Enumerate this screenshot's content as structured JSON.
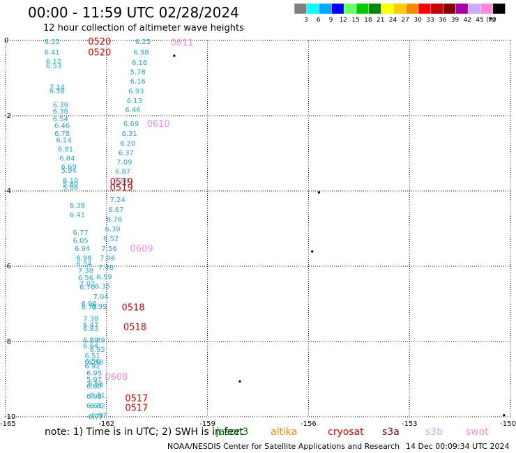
{
  "title": "00:00 - 11:59 UTC 02/28/2024",
  "subtitle": "12 hour collection of altimeter wave heights",
  "legend": {
    "unit": "(ft)",
    "items": [
      {
        "label": "3",
        "color": "#808080"
      },
      {
        "label": "6",
        "color": "#00ffff"
      },
      {
        "label": "9",
        "color": "#00aaff"
      },
      {
        "label": "12",
        "color": "#0000ff"
      },
      {
        "label": "15",
        "color": "#66ff66"
      },
      {
        "label": "18",
        "color": "#00cc00"
      },
      {
        "label": "21",
        "color": "#008800"
      },
      {
        "label": "24",
        "color": "#ffff00"
      },
      {
        "label": "27",
        "color": "#ffcc00"
      },
      {
        "label": "30",
        "color": "#ff8800"
      },
      {
        "label": "33",
        "color": "#ff0000"
      },
      {
        "label": "36",
        "color": "#cc0000"
      },
      {
        "label": "39",
        "color": "#880000"
      },
      {
        "label": "42",
        "color": "#aa00aa"
      },
      {
        "label": "45",
        "color": "#ccaaff"
      },
      {
        "label": "70",
        "color": "#ff88dd"
      },
      {
        "label": "",
        "color": "#000000"
      }
    ]
  },
  "axes": {
    "x_ticks": [
      "-165",
      "-162",
      "-159",
      "-156",
      "-153",
      "-150"
    ],
    "y_ticks": [
      "0",
      "-2",
      "-4",
      "-6",
      "-8",
      "-10"
    ],
    "x_range": [
      -165,
      -150
    ],
    "y_range": [
      -10,
      0
    ],
    "grid": true
  },
  "colors": {
    "swh": "#22a8d8",
    "s3a": "#e00000",
    "s3b": "#ff88dd"
  },
  "swh_readings": [
    {
      "text": "6.33",
      "lon": -163.85,
      "lat": -0.02
    },
    {
      "text": "6.41",
      "lon": -163.85,
      "lat": -0.31
    },
    {
      "text": "6.12",
      "lon": -163.8,
      "lat": -0.55
    },
    {
      "text": "6.53",
      "lon": -163.8,
      "lat": -0.66
    },
    {
      "text": "7.14",
      "lon": -163.7,
      "lat": -1.23
    },
    {
      "text": "6.58",
      "lon": -163.7,
      "lat": -1.32
    },
    {
      "text": "6.39",
      "lon": -163.6,
      "lat": -1.7
    },
    {
      "text": "6.38",
      "lon": -163.6,
      "lat": -1.87
    },
    {
      "text": "6.54",
      "lon": -163.6,
      "lat": -2.07
    },
    {
      "text": "6.46",
      "lon": -163.55,
      "lat": -2.25
    },
    {
      "text": "6.78",
      "lon": -163.55,
      "lat": -2.46
    },
    {
      "text": "6.14",
      "lon": -163.5,
      "lat": -2.64
    },
    {
      "text": "6.81",
      "lon": -163.45,
      "lat": -2.88
    },
    {
      "text": "6.84",
      "lon": -163.4,
      "lat": -3.12
    },
    {
      "text": "6.69",
      "lon": -163.35,
      "lat": -3.34
    },
    {
      "text": "5.94",
      "lon": -163.35,
      "lat": -3.44
    },
    {
      "text": "6.10",
      "lon": -163.3,
      "lat": -3.7
    },
    {
      "text": "5.80",
      "lon": -163.3,
      "lat": -3.81
    },
    {
      "text": "5.86",
      "lon": -163.3,
      "lat": -3.9
    },
    {
      "text": "6.38",
      "lon": -163.1,
      "lat": -4.37
    },
    {
      "text": "6.41",
      "lon": -163.1,
      "lat": -4.62
    },
    {
      "text": "6.77",
      "lon": -163.0,
      "lat": -5.09
    },
    {
      "text": "6.05",
      "lon": -163.0,
      "lat": -5.31
    },
    {
      "text": "6.94",
      "lon": -162.95,
      "lat": -5.52
    },
    {
      "text": "6.98",
      "lon": -162.9,
      "lat": -5.77
    },
    {
      "text": "6.54",
      "lon": -162.9,
      "lat": -5.92
    },
    {
      "text": "7.38",
      "lon": -162.85,
      "lat": -6.1
    },
    {
      "text": "6.56",
      "lon": -162.85,
      "lat": -6.3
    },
    {
      "text": "7.02",
      "lon": -162.8,
      "lat": -6.45
    },
    {
      "text": "6.70",
      "lon": -162.8,
      "lat": -6.55
    },
    {
      "text": "6.96",
      "lon": -162.75,
      "lat": -6.98
    },
    {
      "text": "6.73",
      "lon": -162.75,
      "lat": -7.07
    },
    {
      "text": "7.38",
      "lon": -162.7,
      "lat": -7.38
    },
    {
      "text": "6.47",
      "lon": -162.7,
      "lat": -7.55
    },
    {
      "text": "6.83",
      "lon": -162.7,
      "lat": -7.65
    },
    {
      "text": "6.59",
      "lon": -162.7,
      "lat": -7.95
    },
    {
      "text": "6.64",
      "lon": -162.7,
      "lat": -8.1
    },
    {
      "text": "6.51",
      "lon": -162.65,
      "lat": -8.37
    },
    {
      "text": "6.56",
      "lon": -162.65,
      "lat": -8.52
    },
    {
      "text": "6.92",
      "lon": -162.65,
      "lat": -8.64
    },
    {
      "text": "6.95",
      "lon": -162.6,
      "lat": -8.82
    },
    {
      "text": "6.56",
      "lon": -162.55,
      "lat": -9.12
    },
    {
      "text": "6.31",
      "lon": -162.5,
      "lat": -9.42
    },
    {
      "text": "6.82",
      "lon": -162.5,
      "lat": -9.69
    },
    {
      "text": "6.97",
      "lon": -162.45,
      "lat": -9.95
    },
    {
      "text": "6.25",
      "lon": -161.15,
      "lat": -0.02
    },
    {
      "text": "6.98",
      "lon": -161.2,
      "lat": -0.31
    },
    {
      "text": "6.16",
      "lon": -161.25,
      "lat": -0.57
    },
    {
      "text": "5.78",
      "lon": -161.3,
      "lat": -0.82
    },
    {
      "text": "6.16",
      "lon": -161.3,
      "lat": -1.07
    },
    {
      "text": "6.93",
      "lon": -161.35,
      "lat": -1.33
    },
    {
      "text": "6.13",
      "lon": -161.4,
      "lat": -1.59
    },
    {
      "text": "6.46",
      "lon": -161.45,
      "lat": -1.83
    },
    {
      "text": "6.69",
      "lon": -161.5,
      "lat": -2.2
    },
    {
      "text": "6.31",
      "lon": -161.55,
      "lat": -2.46
    },
    {
      "text": "6.20",
      "lon": -161.6,
      "lat": -2.72
    },
    {
      "text": "6.37",
      "lon": -161.65,
      "lat": -2.97
    },
    {
      "text": "7.09",
      "lon": -161.7,
      "lat": -3.22
    },
    {
      "text": "6.87",
      "lon": -161.75,
      "lat": -3.47
    },
    {
      "text": "6.58",
      "lon": -161.8,
      "lat": -3.72
    },
    {
      "text": "7.24",
      "lon": -161.9,
      "lat": -4.22
    },
    {
      "text": "6.67",
      "lon": -161.95,
      "lat": -4.48
    },
    {
      "text": "6.76",
      "lon": -162.0,
      "lat": -4.74
    },
    {
      "text": "6.39",
      "lon": -162.05,
      "lat": -5.0
    },
    {
      "text": "6.52",
      "lon": -162.1,
      "lat": -5.25
    },
    {
      "text": "7.56",
      "lon": -162.15,
      "lat": -5.52
    },
    {
      "text": "7.06",
      "lon": -162.2,
      "lat": -5.77
    },
    {
      "text": "7.48",
      "lon": -162.25,
      "lat": -6.02
    },
    {
      "text": "6.59",
      "lon": -162.3,
      "lat": -6.27
    },
    {
      "text": "6.35",
      "lon": -162.35,
      "lat": -6.52
    },
    {
      "text": "7.04",
      "lon": -162.4,
      "lat": -6.8
    },
    {
      "text": "6.99",
      "lon": -162.45,
      "lat": -7.06
    },
    {
      "text": "6.39",
      "lon": -162.5,
      "lat": -7.95
    },
    {
      "text": "6.92",
      "lon": -162.5,
      "lat": -8.2
    },
    {
      "text": "6.58",
      "lon": -162.55,
      "lat": -8.54
    },
    {
      "text": "5.97",
      "lon": -162.6,
      "lat": -9.0
    },
    {
      "text": "6.80",
      "lon": -162.6,
      "lat": -9.18
    },
    {
      "text": "6.98",
      "lon": -162.6,
      "lat": -9.44
    },
    {
      "text": "6.63",
      "lon": -162.6,
      "lat": -9.69
    },
    {
      "text": "6.77",
      "lon": -162.55,
      "lat": -9.98
    }
  ],
  "track_labels": [
    {
      "text": "0520",
      "lon": -162.55,
      "lat": -0.02,
      "sat": "s3a"
    },
    {
      "text": "0520",
      "lon": -162.55,
      "lat": -0.31,
      "sat": "s3a"
    },
    {
      "text": "0611",
      "lon": -160.1,
      "lat": -0.05,
      "sat": "s3b"
    },
    {
      "text": "0610",
      "lon": -160.8,
      "lat": -2.2,
      "sat": "s3b"
    },
    {
      "text": "0519",
      "lon": -161.9,
      "lat": -3.75,
      "sat": "s3a"
    },
    {
      "text": "0519",
      "lon": -161.9,
      "lat": -3.9,
      "sat": "s3a"
    },
    {
      "text": "0609",
      "lon": -161.3,
      "lat": -5.52,
      "sat": "s3b"
    },
    {
      "text": "0518",
      "lon": -161.55,
      "lat": -7.08,
      "sat": "s3a"
    },
    {
      "text": "0518",
      "lon": -161.5,
      "lat": -7.6,
      "sat": "s3a"
    },
    {
      "text": "0608",
      "lon": -162.05,
      "lat": -8.93,
      "sat": "s3b"
    },
    {
      "text": "0517",
      "lon": -161.45,
      "lat": -9.5,
      "sat": "s3a"
    },
    {
      "text": "0517",
      "lon": -161.45,
      "lat": -9.75,
      "sat": "s3a"
    }
  ],
  "islands": [
    {
      "name": "island",
      "lon": -160.0,
      "lat": -0.4
    },
    {
      "name": "island",
      "lon": -155.7,
      "lat": -4.03
    },
    {
      "name": "island",
      "lon": -155.9,
      "lat": -5.6
    },
    {
      "name": "island",
      "lon": -158.05,
      "lat": -9.05
    },
    {
      "name": "island",
      "lon": -150.2,
      "lat": -9.95
    }
  ],
  "note": "note:  1) Time is in UTC;  2) SWH is in feet",
  "satellites": [
    {
      "label": "jason3",
      "color": "#008800"
    },
    {
      "label": "altika",
      "color": "#ff8800"
    },
    {
      "label": "cryosat",
      "color": "#e00000"
    },
    {
      "label": "s3a",
      "color": "#880000"
    },
    {
      "label": "s3b",
      "color": "#ccaaff"
    },
    {
      "label": "swot",
      "color": "#ff88dd"
    }
  ],
  "footer_org": "NOAA/NESDIS Center for Satellite Applications and Research",
  "footer_date": "14 Dec 00:09:34 UTC 2024"
}
